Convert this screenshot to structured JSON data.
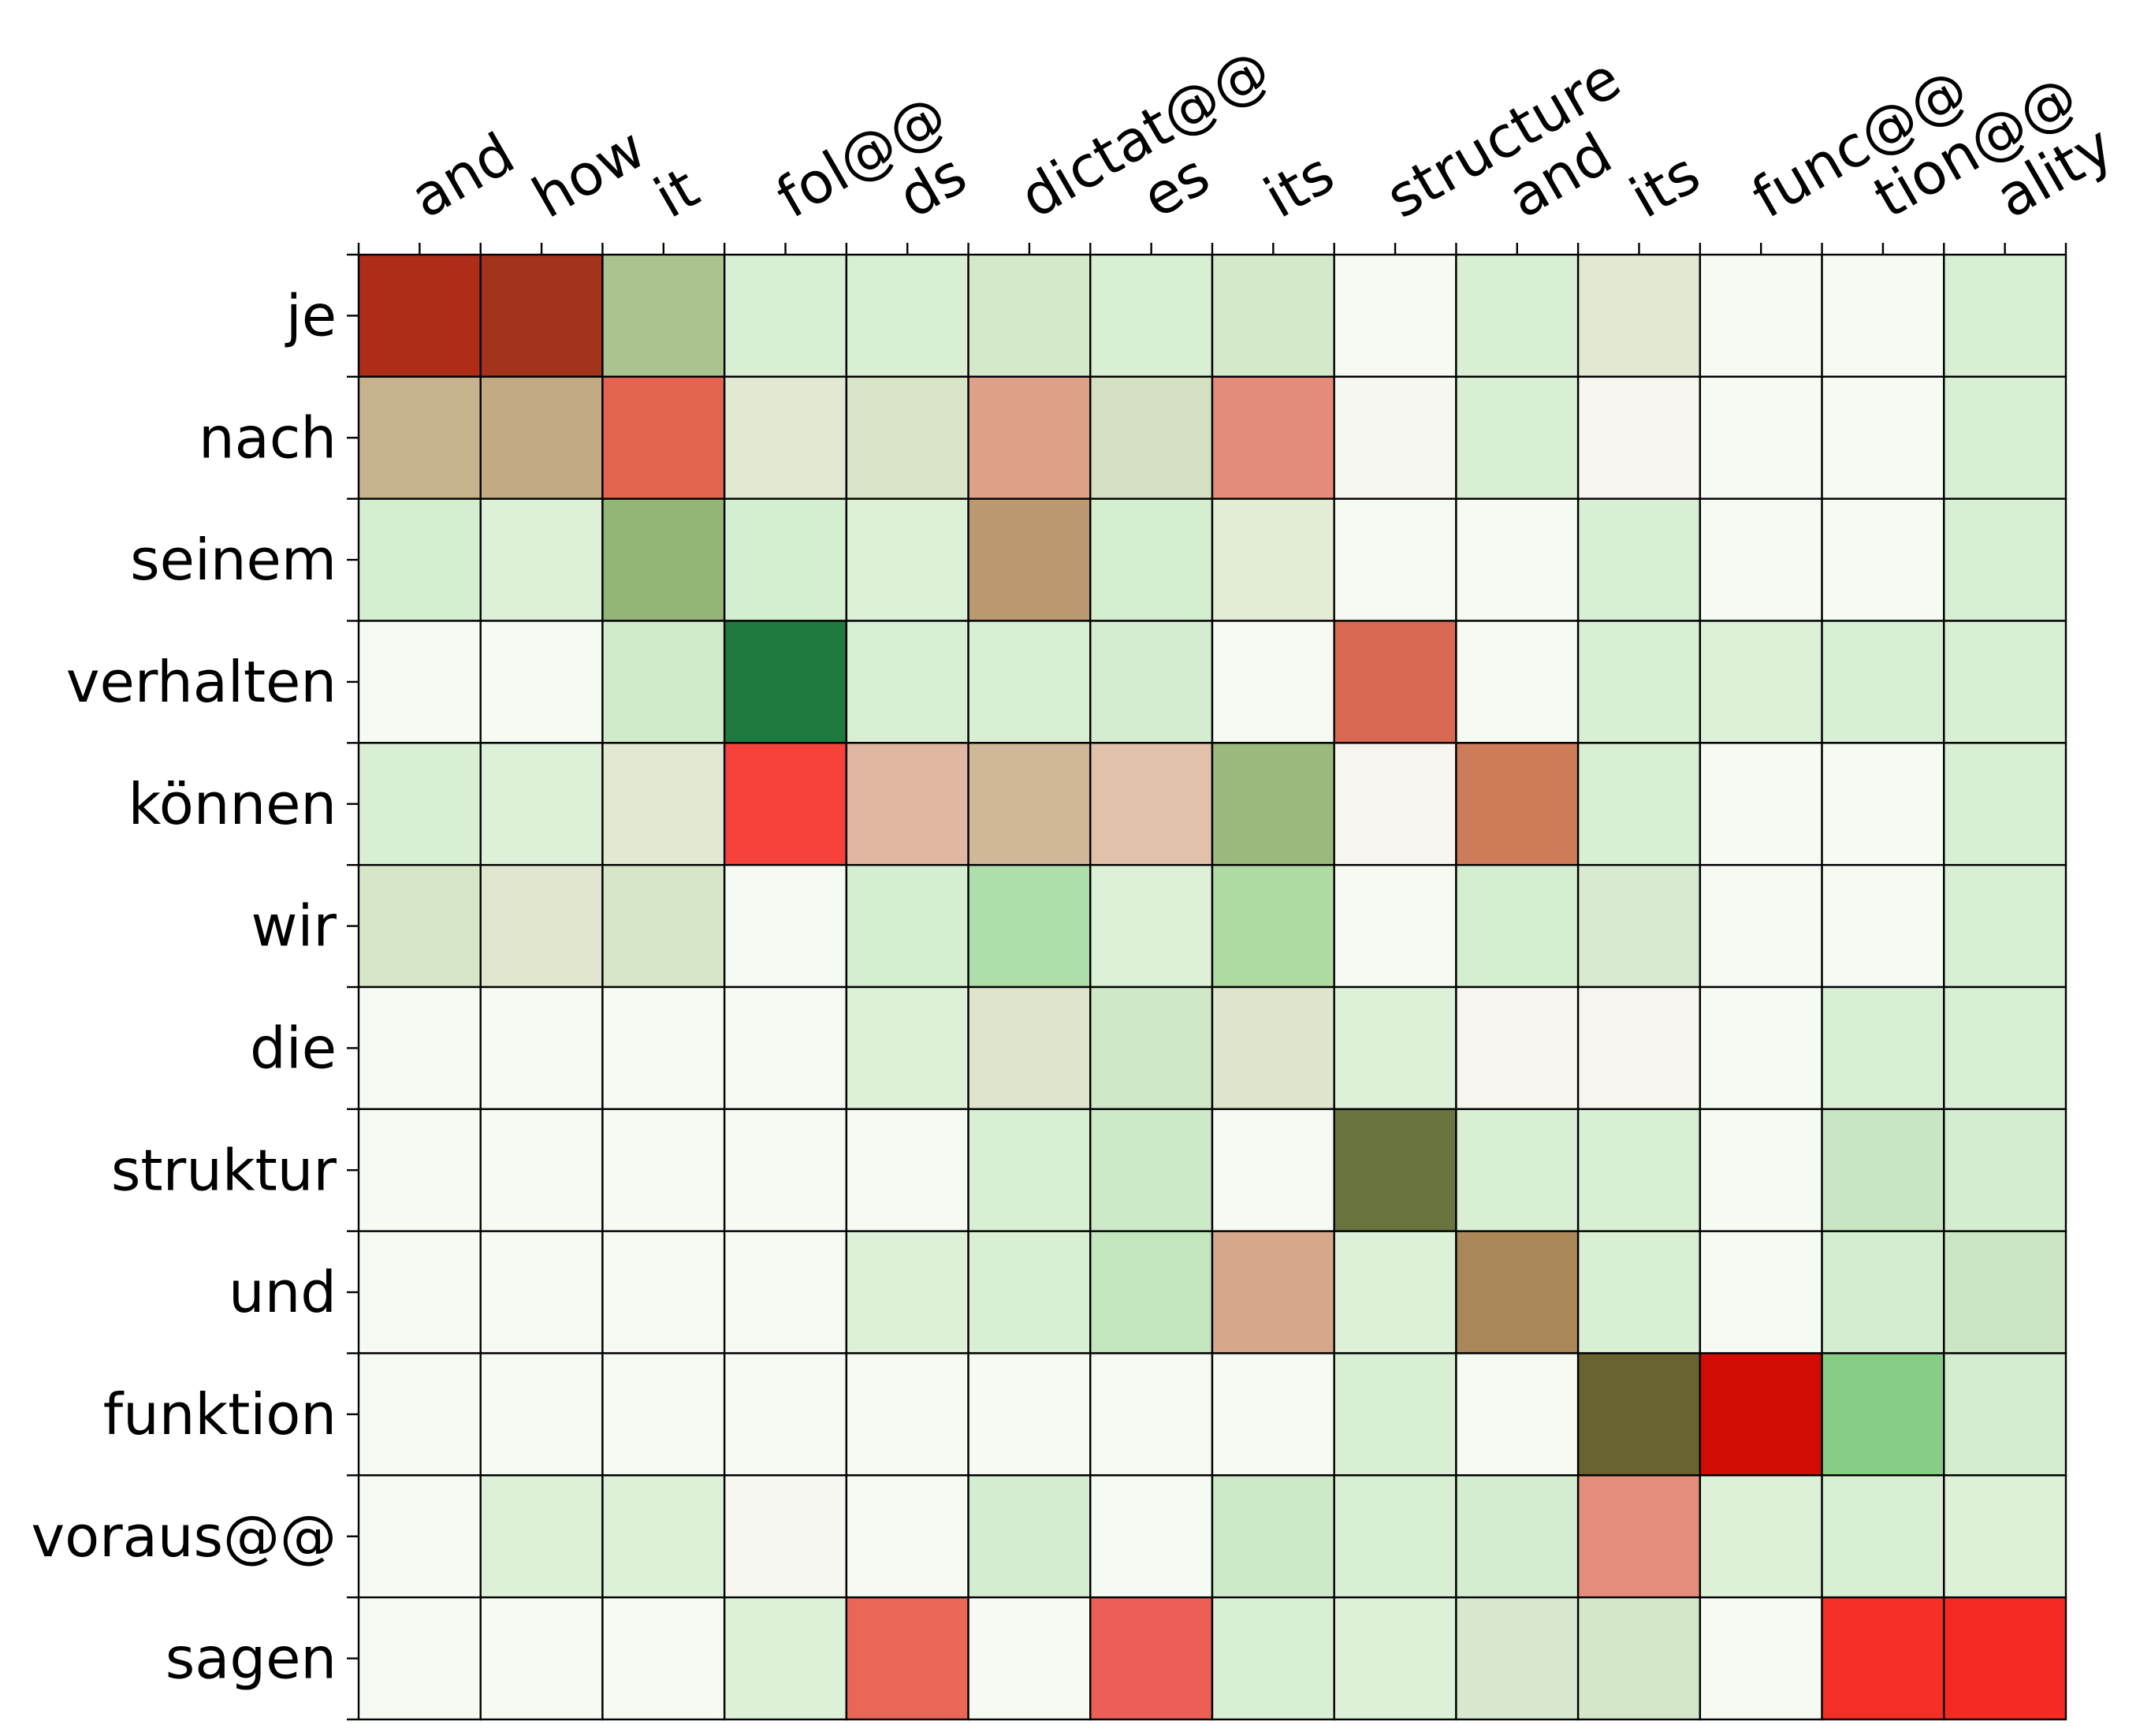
{
  "chart_data": {
    "type": "heatmap",
    "title": "",
    "xlabel": "",
    "ylabel": "",
    "grid": true,
    "x_tick_position": "top",
    "x": [
      "and",
      "how",
      "it",
      "fol@@",
      "ds",
      "dictat@@",
      "es",
      "its",
      "structure",
      "and",
      "its",
      "func@@",
      "tion@@",
      "ality"
    ],
    "y": [
      "je",
      "nach",
      "seinem",
      "verhalten",
      "können",
      "wir",
      "die",
      "struktur",
      "und",
      "funktion",
      "voraus@@",
      "sagen"
    ],
    "cells": [
      [
        "#ad2d18",
        "#a3331d",
        "#abc48f",
        "#d8efd4",
        "#d8efd4",
        "#d4e9c9",
        "#d8efd4",
        "#d4e9c9",
        "#f5faf3",
        "#d8efd4",
        "#e1e9d2",
        "#f5faf3",
        "#f5faf3",
        "#d8efd4"
      ],
      [
        "#c7b28e",
        "#c2ab82",
        "#e36451",
        "#e1e9d2",
        "#dae4c7",
        "#dea188",
        "#d5e1c2",
        "#e58b7a",
        "#f6f7f1",
        "#d8efd4",
        "#f6f5f0",
        "#f5faf3",
        "#f5faf3",
        "#d8efd4"
      ],
      [
        "#d4efd0",
        "#dcf1d8",
        "#93b576",
        "#d4efd0",
        "#dcf1d8",
        "#bb9970",
        "#d4efd0",
        "#e3ecd5",
        "#f5faf3",
        "#f5faf3",
        "#d8efd4",
        "#f5faf3",
        "#f5faf3",
        "#d8efd4"
      ],
      [
        "#f5faf3",
        "#f5faf3",
        "#cfebc9",
        "#1e7a3f",
        "#d8efd4",
        "#d8efd4",
        "#d4ecd0",
        "#f5faf3",
        "#da6954",
        "#f5faf3",
        "#d8efd4",
        "#dcf1d8",
        "#d8efd4",
        "#d8efd4"
      ],
      [
        "#d8efd4",
        "#dcf1d8",
        "#e1e9d2",
        "#f7413b",
        "#e1b7a1",
        "#cfb797",
        "#e2c1ab",
        "#9bb97c",
        "#f6f5f0",
        "#ce7b5a",
        "#d8efd4",
        "#f5faf3",
        "#f5faf3",
        "#d8efd4"
      ],
      [
        "#d8e6c8",
        "#e1e7cf",
        "#d8e6c8",
        "#f5faf3",
        "#d4efd0",
        "#aedeaa",
        "#dcf1d8",
        "#aedba4",
        "#f5faf3",
        "#d4efd0",
        "#d8ead0",
        "#f5faf3",
        "#f5faf3",
        "#d8efd4"
      ],
      [
        "#f5faf3",
        "#f5faf3",
        "#f5faf3",
        "#f5faf3",
        "#dcf1d8",
        "#dfe4cd",
        "#cfe8c7",
        "#dde6cc",
        "#dcf1d8",
        "#f6f5f0",
        "#f6f5f0",
        "#f5faf3",
        "#d8efd4",
        "#d8efd4"
      ],
      [
        "#f5faf3",
        "#f5faf3",
        "#f5faf3",
        "#f5faf3",
        "#f5faf3",
        "#d8efd4",
        "#cdeac8",
        "#f5faf3",
        "#68753f",
        "#d8efd4",
        "#d8efd4",
        "#f5faf3",
        "#c8e6c1",
        "#d4ecd0"
      ],
      [
        "#f5faf3",
        "#f5faf3",
        "#f5faf3",
        "#f5faf3",
        "#dcf1d8",
        "#d8efd4",
        "#c4e6bf",
        "#d6a78b",
        "#dcf1d8",
        "#a98758",
        "#d8efd4",
        "#f5faf3",
        "#d4ecd0",
        "#cbe6c4"
      ],
      [
        "#f5faf3",
        "#f5faf3",
        "#f5faf3",
        "#f5faf3",
        "#f5faf3",
        "#f5faf3",
        "#f5faf3",
        "#f5faf3",
        "#d8efd4",
        "#f5faf3",
        "#686331",
        "#d10c04",
        "#88cd86",
        "#d4ecd0"
      ],
      [
        "#f5faf3",
        "#dcf1d8",
        "#dcf1d8",
        "#f6f7f1",
        "#f5faf3",
        "#d4ecd0",
        "#f5faf3",
        "#cdeac8",
        "#d8efd4",
        "#d4ecd0",
        "#e58c7c",
        "#dcf1d8",
        "#d8efd4",
        "#dcf1d8"
      ],
      [
        "#f5faf3",
        "#f5faf3",
        "#f5faf3",
        "#dcf1d8",
        "#ea6656",
        "#f5faf3",
        "#ec5f56",
        "#d8efd4",
        "#dcf1d8",
        "#d8e8cf",
        "#d4e8c9",
        "#f5faf3",
        "#f72d28",
        "#f62a24"
      ]
    ]
  }
}
